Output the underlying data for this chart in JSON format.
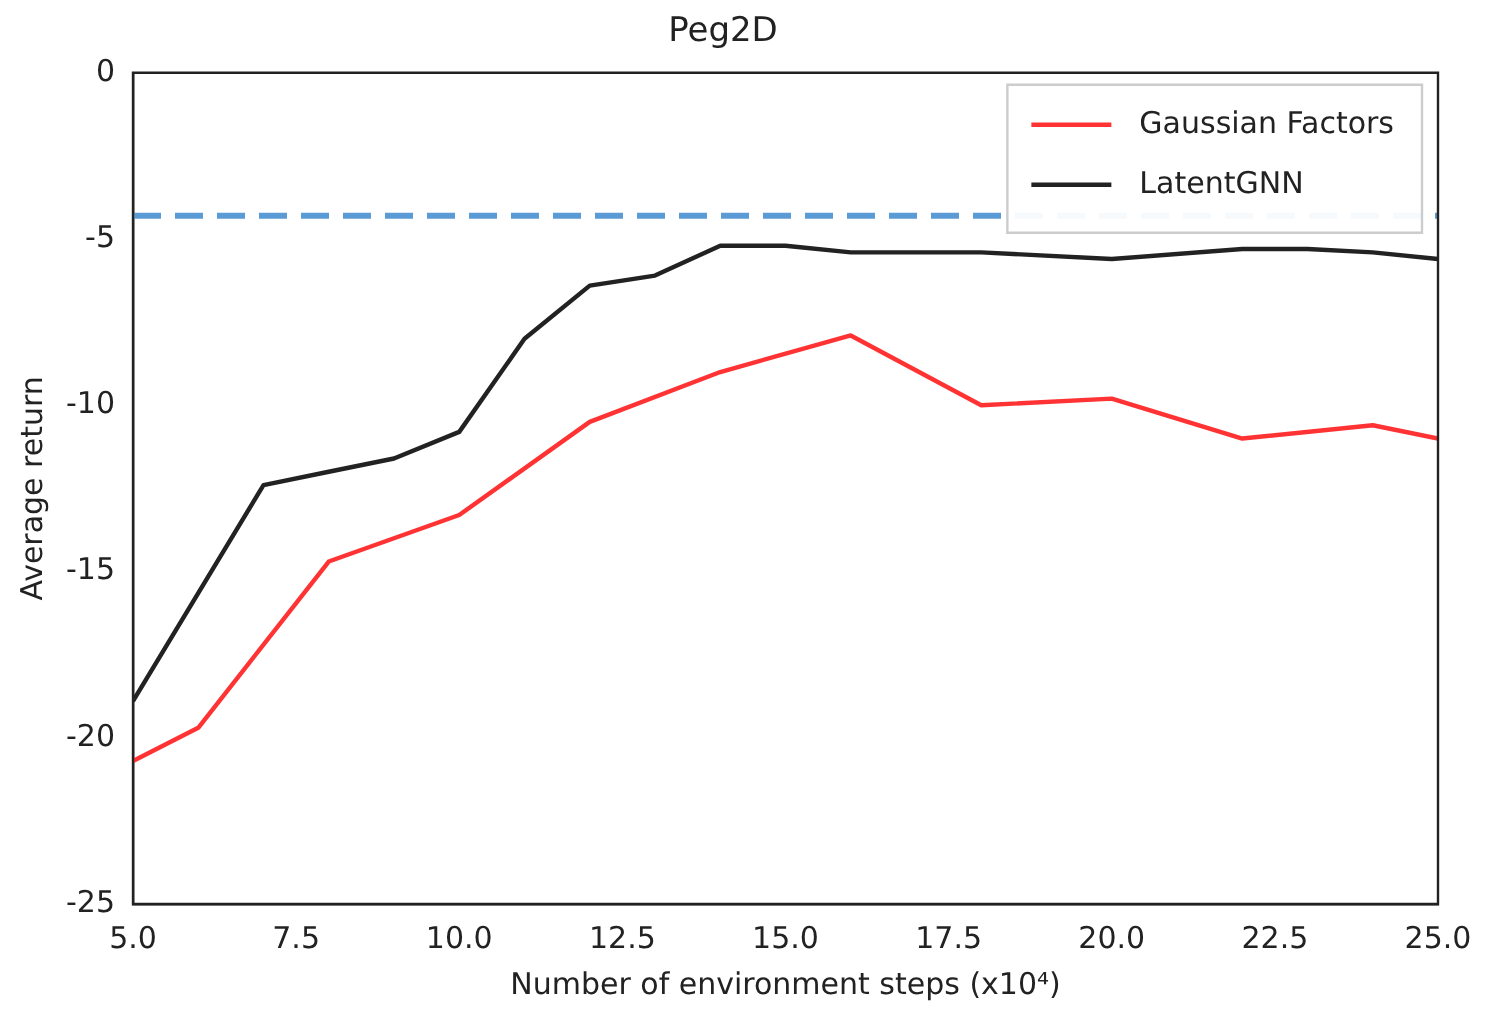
{
  "chart_data": {
    "type": "line",
    "title": "Peg2D",
    "xlabel": "Number of environment steps (x10⁴)",
    "ylabel": "Average return",
    "xlim": [
      5,
      25
    ],
    "xticks": [
      {
        "value": 5,
        "label": "5.0"
      },
      {
        "value": 7.5,
        "label": "7.5"
      },
      {
        "value": 10,
        "label": "10.0"
      },
      {
        "value": 12.5,
        "label": "12.5"
      },
      {
        "value": 15,
        "label": "15.0"
      },
      {
        "value": 17.5,
        "label": "17.5"
      },
      {
        "value": 20,
        "label": "20.0"
      },
      {
        "value": 22.5,
        "label": "22.5"
      },
      {
        "value": 25,
        "label": "25.0"
      }
    ],
    "ylim": [
      -25,
      0
    ],
    "yticks": [
      -25,
      -20,
      -15,
      -10,
      -5,
      0
    ],
    "grid": false,
    "legend": "top right",
    "series": [
      {
        "name": "Gaussian Factors",
        "color": "#ff3333",
        "x": [
          5,
          6,
          8,
          10,
          12,
          14,
          16,
          18,
          20,
          22,
          24,
          25
        ],
        "values": [
          -20.7,
          -19.7,
          -14.7,
          -13.3,
          -10.5,
          -9.0,
          -7.9,
          -10.0,
          -9.8,
          -11.0,
          -10.6,
          -11.0
        ]
      },
      {
        "name": "LatentGNN",
        "color": "#222222",
        "x": [
          5,
          7,
          8,
          9,
          10,
          11,
          12,
          13,
          14,
          15,
          16,
          18,
          20,
          22,
          23,
          24,
          25
        ],
        "values": [
          -18.9,
          -12.4,
          -12.0,
          -11.6,
          -10.8,
          -8.0,
          -6.4,
          -6.1,
          -5.2,
          -5.2,
          -5.4,
          -5.4,
          -5.6,
          -5.3,
          -5.3,
          -5.4,
          -5.6
        ]
      }
    ],
    "ref_lines": [
      {
        "axis": "y",
        "value": -4.3,
        "color": "#5b9bd5",
        "line_style": "dashed"
      }
    ]
  }
}
